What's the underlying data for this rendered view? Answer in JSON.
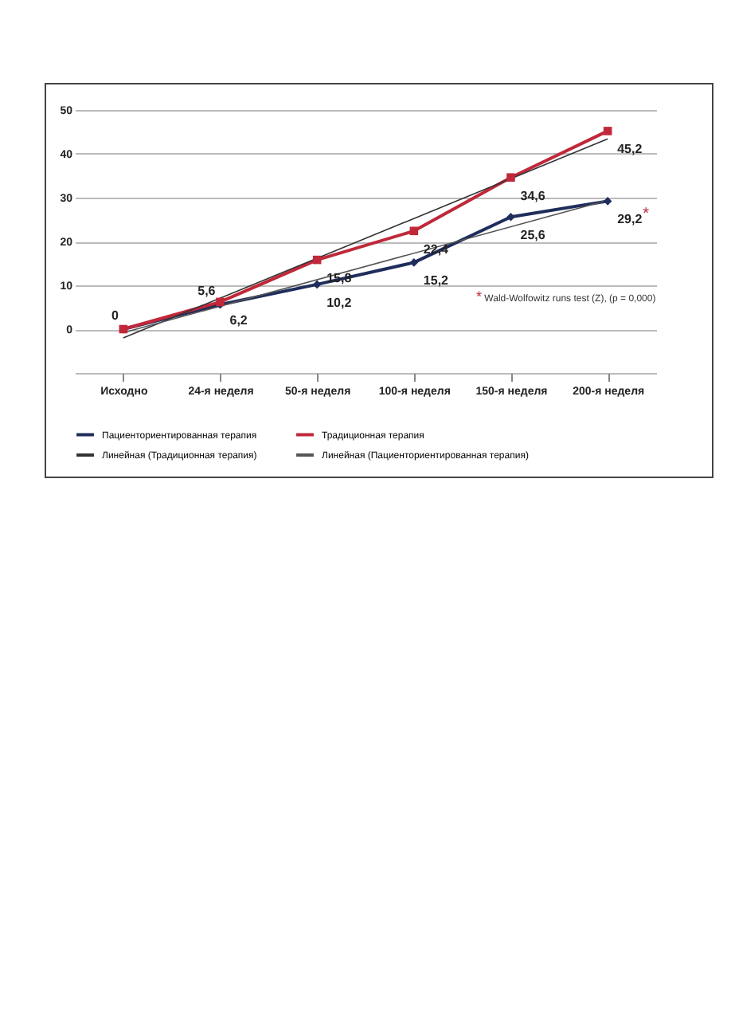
{
  "chart_data": {
    "type": "line",
    "categories": [
      "Исходно",
      "24-я неделя",
      "50-я неделя",
      "100-я неделя",
      "150-я неделя",
      "200-я неделя"
    ],
    "ylim": [
      -10,
      50
    ],
    "yticks": [
      {
        "value": -10,
        "label": null
      },
      0,
      10,
      20,
      30,
      40,
      50
    ],
    "grid": "y",
    "legend": "bottom",
    "series": [
      {
        "name": "Пациенториентированная терапия",
        "color": "#1f2d5c",
        "marker": "diamond",
        "values": [
          0,
          5.6,
          10.2,
          15.2,
          25.6,
          29.2
        ],
        "value_labels": [
          null,
          "5,6",
          "10,2",
          "15,2",
          "25,6",
          "29,2"
        ]
      },
      {
        "name": "Традиционная терапия",
        "color": "#c0283a",
        "marker": "square",
        "values": [
          0,
          6.2,
          15.8,
          22.4,
          34.6,
          45.2
        ],
        "value_labels": [
          "0",
          "6,2",
          "15,8",
          "22,4",
          "34,6",
          "45,2"
        ]
      },
      {
        "name": "Линейная (Традиционная терапия)",
        "color": "#333333",
        "type": "line",
        "marker": "none",
        "x": [
          "Исходно",
          "200-я неделя"
        ],
        "values": [
          -2.0,
          43.4
        ]
      },
      {
        "name": "Линейная (Пациенториентированная терапия)",
        "color": "#555555",
        "type": "line",
        "marker": "none",
        "x": [
          "Исходно",
          "200-я неделя"
        ],
        "values": [
          -0.8,
          29.4
        ]
      }
    ],
    "annotations": [
      {
        "text": "*",
        "x": "200-я неделя",
        "y": 29.2
      },
      "* Wald-Wolfowitz runs test (Z), (p = 0,000)"
    ]
  }
}
